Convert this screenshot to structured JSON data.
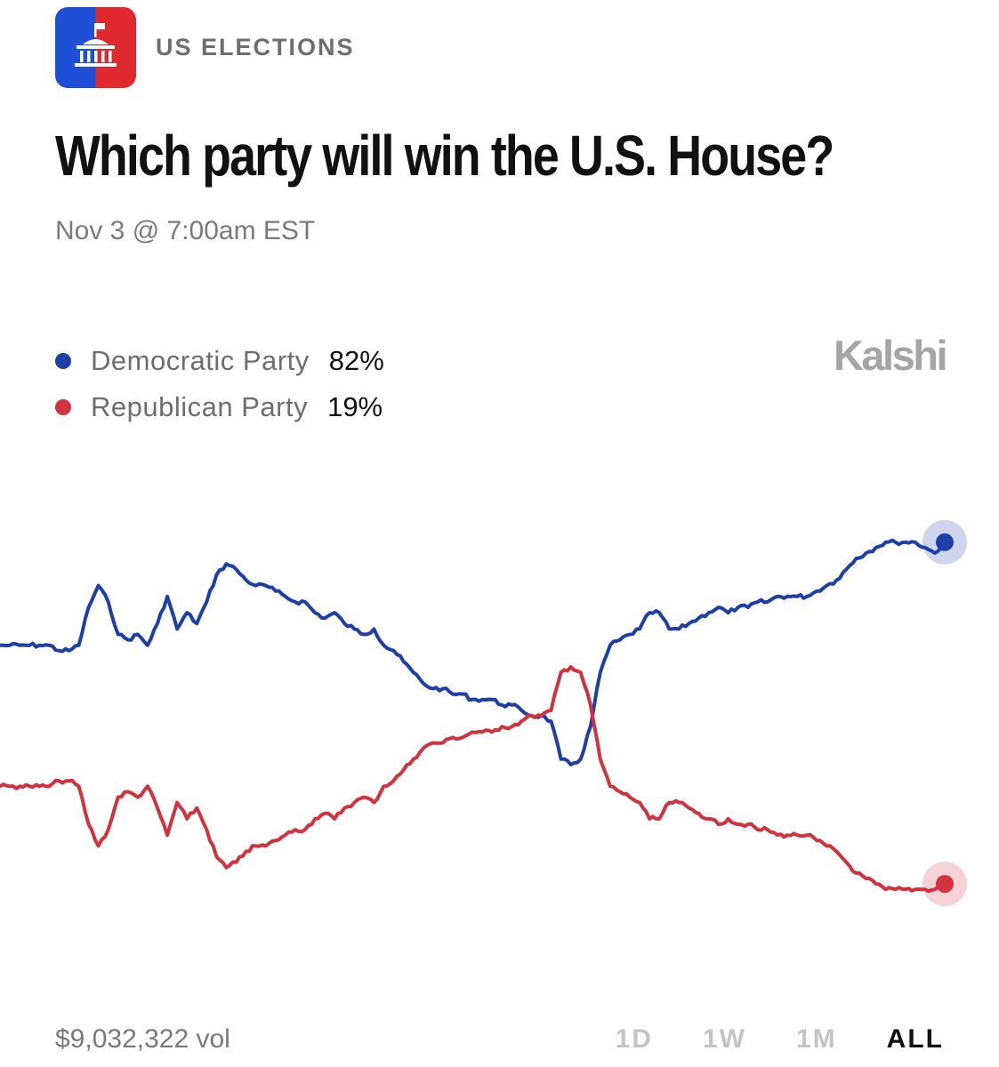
{
  "header": {
    "category": "US ELECTIONS",
    "app_icon": "capitol-building-icon",
    "icon_colors": {
      "left": "#1f4fd6",
      "right": "#e0292e"
    }
  },
  "question": {
    "title": "Which party will win the U.S. House?",
    "timestamp": "Nov 3 @ 7:00am EST"
  },
  "brand": "Kalshi",
  "legend": [
    {
      "name": "Democratic Party",
      "value": "82%",
      "color": "#1f3fa8"
    },
    {
      "name": "Republican Party",
      "value": "19%",
      "color": "#d2323e"
    }
  ],
  "footer": {
    "volume": "$9,032,322 vol",
    "ranges": [
      "1D",
      "1W",
      "1M",
      "ALL"
    ],
    "active_range": "ALL"
  },
  "chart_data": {
    "type": "line",
    "title": "",
    "xlabel": "",
    "ylabel": "",
    "grid": false,
    "ylim": [
      0,
      100
    ],
    "x": [
      0,
      1,
      2,
      3,
      4,
      5,
      6,
      7,
      8,
      9,
      10,
      11,
      12,
      13,
      14,
      15,
      16,
      17,
      18,
      19,
      20,
      21,
      22,
      23,
      24,
      25,
      26,
      27,
      28,
      29,
      30,
      31,
      32,
      33,
      34,
      35,
      36,
      37,
      38,
      39,
      40,
      41,
      42,
      43,
      44,
      45,
      46,
      47,
      48,
      49,
      50,
      51,
      52,
      53,
      54,
      55,
      56,
      57,
      58,
      59,
      60,
      61,
      62,
      63,
      64,
      65,
      66,
      67,
      68,
      69,
      70,
      71,
      72,
      73,
      74,
      75,
      76,
      77,
      78,
      79,
      80,
      81,
      82,
      83,
      84,
      85,
      86,
      87,
      88,
      89,
      90,
      91,
      92,
      93,
      94,
      95,
      96
    ],
    "series": [
      {
        "name": "Democratic Party",
        "color": "#1f3fa8",
        "values": [
          63,
          63,
          63,
          63,
          63,
          63,
          62,
          62,
          63,
          70,
          74,
          71,
          65,
          64,
          65,
          63,
          67,
          72,
          66,
          69,
          67,
          71,
          76,
          78,
          77,
          75,
          74,
          74,
          73,
          72,
          71,
          71,
          69,
          68,
          69,
          67,
          66,
          65,
          66,
          63,
          62,
          60,
          58,
          56,
          55,
          55,
          54,
          54,
          53,
          53,
          53,
          52,
          52,
          51,
          50,
          50,
          49,
          42,
          41,
          42,
          48,
          58,
          63,
          64,
          65,
          66,
          69,
          69,
          66,
          66,
          67,
          68,
          69,
          70,
          69,
          70,
          70,
          71,
          71,
          72,
          72,
          72,
          72,
          73,
          74,
          75,
          77,
          79,
          80,
          81,
          82,
          82,
          82,
          82,
          81,
          80,
          82
        ]
      },
      {
        "name": "Republican Party",
        "color": "#d2323e",
        "values": [
          37,
          37,
          37,
          37,
          37,
          37,
          38,
          38,
          37,
          30,
          26,
          29,
          35,
          36,
          35,
          37,
          33,
          28,
          34,
          31,
          33,
          29,
          24,
          22,
          23,
          25,
          26,
          26,
          27,
          28,
          29,
          29,
          31,
          32,
          31,
          33,
          34,
          35,
          34,
          37,
          38,
          40,
          42,
          44,
          45,
          45,
          46,
          46,
          47,
          47,
          47,
          48,
          48,
          49,
          50,
          50,
          51,
          58,
          59,
          58,
          52,
          42,
          37,
          36,
          35,
          34,
          31,
          31,
          34,
          34,
          33,
          32,
          31,
          30,
          31,
          30,
          30,
          29,
          29,
          28,
          28,
          28,
          28,
          27,
          26,
          25,
          23,
          21,
          20,
          19,
          18,
          18,
          18,
          18,
          18,
          18,
          19
        ]
      }
    ]
  }
}
